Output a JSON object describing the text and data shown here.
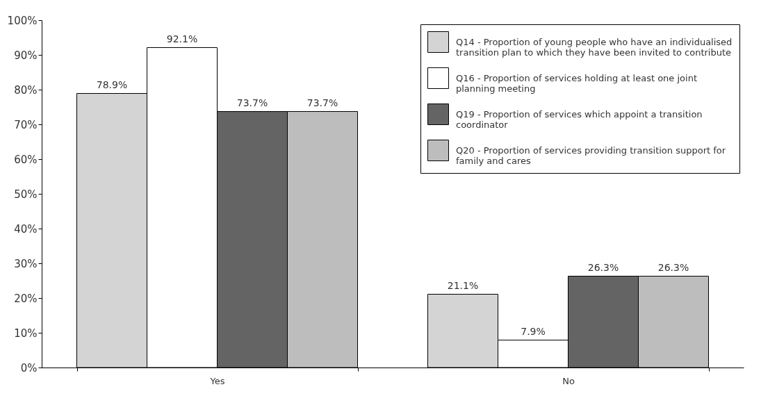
{
  "chart_data": {
    "type": "bar",
    "categories": [
      "Yes",
      "No"
    ],
    "series": [
      {
        "name": "Q14 - Proportion of young people who have an individualised transition plan to which they have been invited to contribute",
        "color": "#d4d4d4",
        "values": [
          78.9,
          21.1
        ],
        "value_labels": [
          "78.9%",
          "21.1%"
        ]
      },
      {
        "name": "Q16 - Proportion of services holding at least one joint planning meeting",
        "color": "#ffffff",
        "values": [
          92.1,
          7.9
        ],
        "value_labels": [
          "92.1%",
          "7.9%"
        ]
      },
      {
        "name": "Q19 - Proportion of services which appoint a transition coordinator",
        "color": "#646464",
        "values": [
          73.7,
          26.3
        ],
        "value_labels": [
          "73.7%",
          "26.3%"
        ]
      },
      {
        "name": "Q20 - Proportion of services providing transition support for family and cares",
        "color": "#bdbdbd",
        "values": [
          73.7,
          26.3
        ],
        "value_labels": [
          "73.7%",
          "26.3%"
        ]
      }
    ],
    "ylim": [
      0,
      100
    ],
    "yticks": [
      {
        "value": 0,
        "label": "0%"
      },
      {
        "value": 10,
        "label": "10%"
      },
      {
        "value": 20,
        "label": "20%"
      },
      {
        "value": 30,
        "label": "30%"
      },
      {
        "value": 40,
        "label": "40%"
      },
      {
        "value": 50,
        "label": "50%"
      },
      {
        "value": 60,
        "label": "60%"
      },
      {
        "value": 70,
        "label": "70%"
      },
      {
        "value": 80,
        "label": "80%"
      },
      {
        "value": 90,
        "label": "90%"
      },
      {
        "value": 100,
        "label": "100%"
      }
    ],
    "grid": false,
    "legend": "top right"
  }
}
